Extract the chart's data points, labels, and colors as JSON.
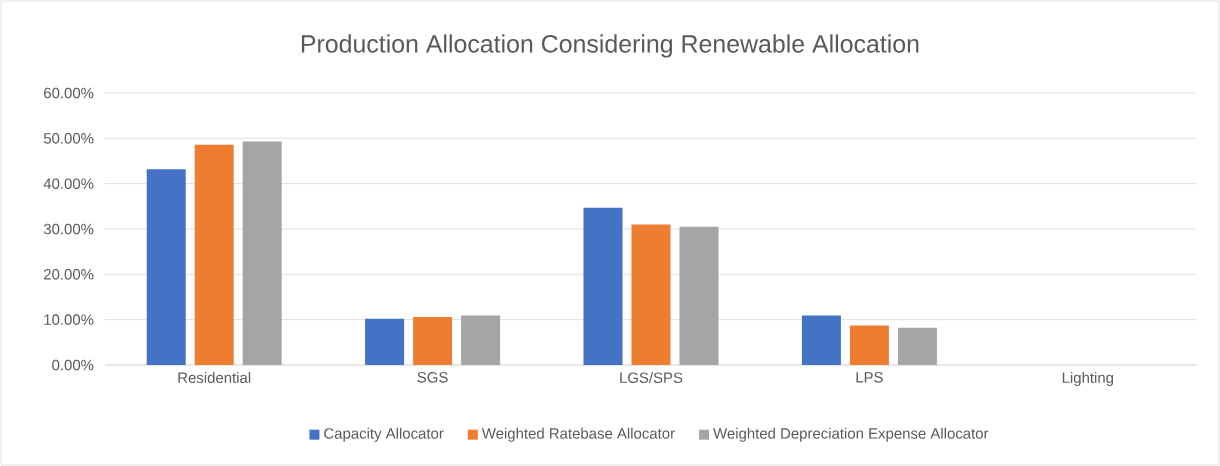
{
  "chart_data": {
    "type": "bar",
    "title": "Production Allocation Considering Renewable Allocation",
    "categories": [
      "Residential",
      "SGS",
      "LGS/SPS",
      "LPS",
      "Lighting"
    ],
    "series": [
      {
        "name": "Capacity Allocator",
        "color": "#4472c4",
        "values": [
          43.2,
          10.2,
          34.7,
          10.9,
          0
        ]
      },
      {
        "name": "Weighted Ratebase Allocator",
        "color": "#ed7d31",
        "values": [
          48.6,
          10.6,
          31.0,
          8.7,
          0
        ]
      },
      {
        "name": "Weighted Depreciation Expense Allocator",
        "color": "#a5a5a5",
        "values": [
          49.3,
          10.9,
          30.5,
          8.2,
          0
        ]
      }
    ],
    "ylim": [
      0,
      60
    ],
    "yticks": [
      {
        "value": 0,
        "label": "0.00%"
      },
      {
        "value": 10,
        "label": "10.00%"
      },
      {
        "value": 20,
        "label": "20.00%"
      },
      {
        "value": 30,
        "label": "30.00%"
      },
      {
        "value": 40,
        "label": "40.00%"
      },
      {
        "value": 50,
        "label": "50.00%"
      },
      {
        "value": 60,
        "label": "60.00%"
      }
    ],
    "grid": "y",
    "legend": "bottom"
  }
}
